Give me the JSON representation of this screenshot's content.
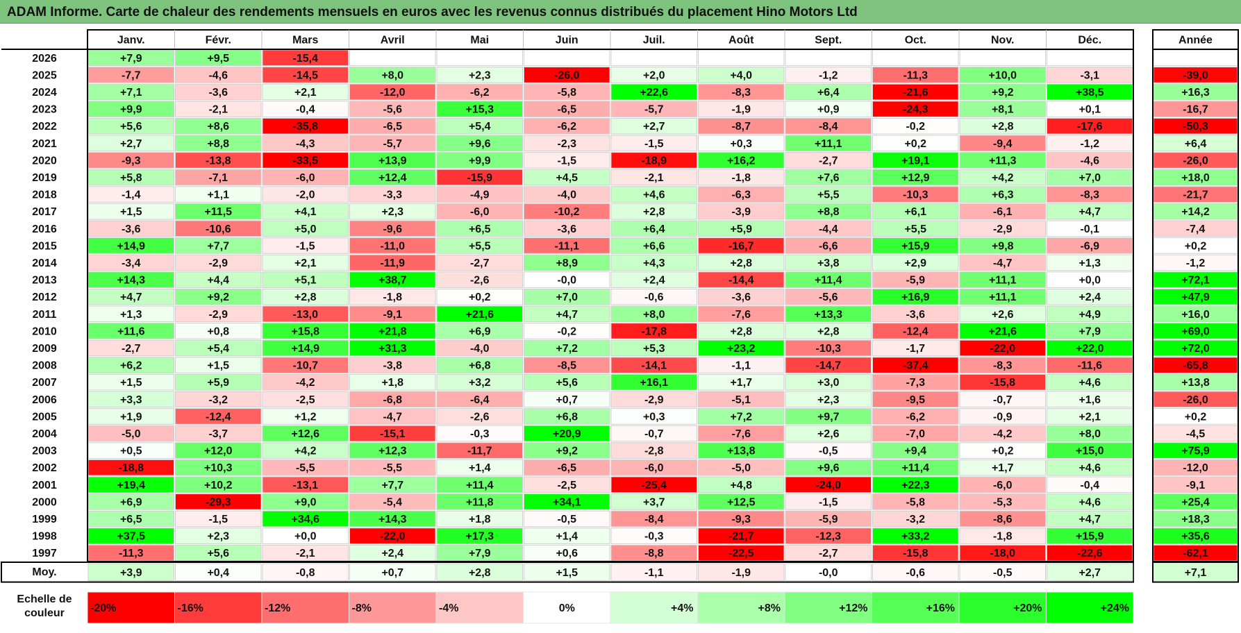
{
  "title": "ADAM Informe. Carte de chaleur des rendements mensuels en euros avec les revenus connus distribués du placement Hino Motors Ltd",
  "chart_data": {
    "type": "heatmap",
    "months": [
      "Janv.",
      "Févr.",
      "Mars",
      "Avril",
      "Mai",
      "Juin",
      "Juil.",
      "Août",
      "Sept.",
      "Oct.",
      "Nov.",
      "Déc."
    ],
    "year_column_label": "Année",
    "average_label": "Moy.",
    "rows": [
      {
        "year": "2026",
        "months": [
          "+7,9",
          "+9,5",
          "-15,4",
          "",
          "",
          "",
          "",
          "",
          "",
          "",
          "",
          ""
        ],
        "annual": ""
      },
      {
        "year": "2025",
        "months": [
          "-7,7",
          "-4,6",
          "-14,5",
          "+8,0",
          "+2,3",
          "-26,0",
          "+2,0",
          "+4,0",
          "-1,2",
          "-11,3",
          "+10,0",
          "-3,1"
        ],
        "annual": "-39,0"
      },
      {
        "year": "2024",
        "months": [
          "+7,1",
          "-3,6",
          "+2,1",
          "-12,0",
          "-6,2",
          "-5,8",
          "+22,6",
          "-8,3",
          "+6,4",
          "-21,6",
          "+9,2",
          "+38,5"
        ],
        "annual": "+16,3"
      },
      {
        "year": "2023",
        "months": [
          "+9,9",
          "-2,1",
          "-0,4",
          "-5,6",
          "+15,3",
          "-6,5",
          "-5,7",
          "-1,9",
          "+0,9",
          "-24,3",
          "+8,1",
          "+0,1"
        ],
        "annual": "-16,7"
      },
      {
        "year": "2022",
        "months": [
          "+5,6",
          "+8,6",
          "-35,8",
          "-6,5",
          "+5,4",
          "-6,2",
          "+2,7",
          "-8,7",
          "-8,4",
          "-0,2",
          "+2,8",
          "-17,6"
        ],
        "annual": "-50,3"
      },
      {
        "year": "2021",
        "months": [
          "+2,7",
          "+8,8",
          "-4,3",
          "-5,7",
          "+9,6",
          "-2,3",
          "-1,5",
          "+0,3",
          "+11,1",
          "+0,2",
          "-9,4",
          "-1,2"
        ],
        "annual": "+6,4"
      },
      {
        "year": "2020",
        "months": [
          "-9,3",
          "-13,8",
          "-33,5",
          "+13,9",
          "+9,9",
          "-1,5",
          "-18,9",
          "+16,2",
          "-2,7",
          "+19,1",
          "+11,3",
          "-4,6"
        ],
        "annual": "-26,0"
      },
      {
        "year": "2019",
        "months": [
          "+5,8",
          "-7,1",
          "-6,0",
          "+12,4",
          "-15,9",
          "+4,5",
          "-2,1",
          "-1,8",
          "+7,6",
          "+12,9",
          "+4,2",
          "+7,0"
        ],
        "annual": "+18,0"
      },
      {
        "year": "2018",
        "months": [
          "-1,4",
          "+1,1",
          "-2,0",
          "-3,3",
          "-4,9",
          "-4,0",
          "+4,6",
          "-6,3",
          "+5,5",
          "-10,3",
          "+6,3",
          "-8,3"
        ],
        "annual": "-21,7"
      },
      {
        "year": "2017",
        "months": [
          "+1,5",
          "+11,5",
          "+4,1",
          "+2,3",
          "-6,0",
          "-10,2",
          "+2,8",
          "-3,9",
          "+8,8",
          "+6,1",
          "-6,1",
          "+4,7"
        ],
        "annual": "+14,2"
      },
      {
        "year": "2016",
        "months": [
          "-3,6",
          "-10,6",
          "+5,0",
          "-9,6",
          "+6,5",
          "-3,6",
          "+6,4",
          "+5,9",
          "-4,4",
          "+5,5",
          "-2,9",
          "-0,1"
        ],
        "annual": "-7,4"
      },
      {
        "year": "2015",
        "months": [
          "+14,9",
          "+7,7",
          "-1,5",
          "-11,0",
          "+5,5",
          "-11,1",
          "+6,6",
          "-16,7",
          "-6,6",
          "+15,9",
          "+9,8",
          "-6,9"
        ],
        "annual": "+0,2"
      },
      {
        "year": "2014",
        "months": [
          "-3,4",
          "-2,9",
          "+2,1",
          "-11,9",
          "-2,7",
          "+8,9",
          "+4,3",
          "+2,8",
          "+3,8",
          "+2,9",
          "-4,7",
          "+1,3"
        ],
        "annual": "-1,2"
      },
      {
        "year": "2013",
        "months": [
          "+14,3",
          "+4,4",
          "+5,1",
          "+38,7",
          "-2,6",
          "-0,0",
          "+2,4",
          "-14,4",
          "+11,4",
          "-5,9",
          "+11,1",
          "+0,0"
        ],
        "annual": "+72,1"
      },
      {
        "year": "2012",
        "months": [
          "+4,7",
          "+9,2",
          "+2,8",
          "-1,8",
          "+0,2",
          "+7,0",
          "-0,6",
          "-3,6",
          "-5,6",
          "+16,9",
          "+11,1",
          "+2,4"
        ],
        "annual": "+47,9"
      },
      {
        "year": "2011",
        "months": [
          "+1,3",
          "-2,9",
          "-13,0",
          "-9,1",
          "+21,6",
          "+4,7",
          "+8,0",
          "-7,6",
          "+13,3",
          "-3,6",
          "+2,6",
          "+4,9"
        ],
        "annual": "+16,0"
      },
      {
        "year": "2010",
        "months": [
          "+11,6",
          "+0,8",
          "+15,8",
          "+21,8",
          "+6,9",
          "-0,2",
          "-17,8",
          "+2,8",
          "+2,8",
          "-12,4",
          "+21,6",
          "+7,9"
        ],
        "annual": "+69,0"
      },
      {
        "year": "2009",
        "months": [
          "-2,7",
          "+5,4",
          "+14,9",
          "+31,3",
          "-4,0",
          "+7,2",
          "+5,3",
          "+23,2",
          "-10,3",
          "-1,7",
          "-22,0",
          "+22,0"
        ],
        "annual": "+72,0"
      },
      {
        "year": "2008",
        "months": [
          "+6,2",
          "+1,5",
          "-10,7",
          "-3,8",
          "+6,8",
          "-8,5",
          "-14,1",
          "-1,1",
          "-14,7",
          "-37,4",
          "-8,3",
          "-11,6"
        ],
        "annual": "-65,8"
      },
      {
        "year": "2007",
        "months": [
          "+1,5",
          "+5,9",
          "-4,2",
          "+1,8",
          "+3,2",
          "+5,6",
          "+16,1",
          "+1,7",
          "+3,0",
          "-7,3",
          "-15,8",
          "+4,6"
        ],
        "annual": "+13,8"
      },
      {
        "year": "2006",
        "months": [
          "+3,3",
          "-3,2",
          "-2,5",
          "-6,8",
          "-6,4",
          "+0,7",
          "-2,9",
          "-5,1",
          "+2,3",
          "-9,5",
          "-0,7",
          "+1,6"
        ],
        "annual": "-26,0"
      },
      {
        "year": "2005",
        "months": [
          "+1,9",
          "-12,4",
          "+1,2",
          "-4,7",
          "-2,6",
          "+6,8",
          "+0,3",
          "+7,2",
          "+9,7",
          "-6,2",
          "-0,9",
          "+2,1"
        ],
        "annual": "+0,2"
      },
      {
        "year": "2004",
        "months": [
          "-5,0",
          "-3,7",
          "+12,6",
          "-15,1",
          "-0,3",
          "+20,9",
          "-0,7",
          "-7,6",
          "+2,6",
          "-7,0",
          "-4,2",
          "+8,0"
        ],
        "annual": "-4,5"
      },
      {
        "year": "2003",
        "months": [
          "+0,5",
          "+12,0",
          "+4,2",
          "+12,3",
          "-11,7",
          "+9,2",
          "-2,8",
          "+13,8",
          "-0,5",
          "+9,4",
          "+0,2",
          "+15,0"
        ],
        "annual": "+75,9"
      },
      {
        "year": "2002",
        "months": [
          "-18,8",
          "+10,3",
          "-5,5",
          "-5,5",
          "+1,4",
          "-6,5",
          "-6,0",
          "-5,0",
          "+9,6",
          "+11,4",
          "+1,7",
          "+4,6"
        ],
        "annual": "-12,0"
      },
      {
        "year": "2001",
        "months": [
          "+19,4",
          "+10,2",
          "-13,1",
          "+7,7",
          "+11,4",
          "-2,5",
          "-25,4",
          "+4,8",
          "-24,0",
          "+22,3",
          "-6,0",
          "-0,4"
        ],
        "annual": "-9,1"
      },
      {
        "year": "2000",
        "months": [
          "+6,9",
          "-29,3",
          "+9,0",
          "-5,4",
          "+11,8",
          "+34,1",
          "+3,7",
          "+12,5",
          "-1,5",
          "-5,8",
          "-5,3",
          "+4,6"
        ],
        "annual": "+25,4"
      },
      {
        "year": "1999",
        "months": [
          "+6,5",
          "-1,5",
          "+34,6",
          "+14,3",
          "+1,8",
          "-0,5",
          "-8,4",
          "-9,3",
          "-5,9",
          "-3,2",
          "-8,6",
          "+4,7"
        ],
        "annual": "+18,3"
      },
      {
        "year": "1998",
        "months": [
          "+37,5",
          "+2,3",
          "+0,0",
          "-22,0",
          "+17,3",
          "+1,4",
          "-0,3",
          "-21,7",
          "-12,3",
          "+33,2",
          "-1,8",
          "+15,9"
        ],
        "annual": "+35,6"
      },
      {
        "year": "1997",
        "months": [
          "-11,3",
          "+5,6",
          "-2,1",
          "+2,4",
          "+7,9",
          "+0,6",
          "-8,8",
          "-22,5",
          "-2,7",
          "-15,8",
          "-18,0",
          "-22,6"
        ],
        "annual": "-62,1"
      }
    ],
    "averages": [
      "+3,9",
      "+0,4",
      "-0,8",
      "+0,7",
      "+2,8",
      "+1,5",
      "-1,1",
      "-1,9",
      "-0,0",
      "-0,6",
      "-0,5",
      "+2,7"
    ],
    "average_annual": "+7,1",
    "color_scale": {
      "label": "Echelle de couleur",
      "steps": [
        "-20%",
        "-16%",
        "-12%",
        "-8%",
        "-4%",
        "0%",
        "+4%",
        "+8%",
        "+12%",
        "+16%",
        "+20%",
        "+24%"
      ],
      "step_values": [
        -20,
        -16,
        -12,
        -8,
        -4,
        0,
        4,
        8,
        12,
        16,
        20,
        24
      ],
      "colors": [
        "#ff0000",
        "#ff3b3b",
        "#ff6e6e",
        "#ff9999",
        "#ffc6c6",
        "#ffffff",
        "#d4ffd4",
        "#aaffaa",
        "#80ff80",
        "#55ff55",
        "#2bff2b",
        "#00ff00"
      ]
    },
    "colors": {
      "strong_negative": "#ff0000",
      "neutral": "#ffffff",
      "strong_positive": "#00ff00",
      "title_background": "#7dc27d"
    }
  }
}
